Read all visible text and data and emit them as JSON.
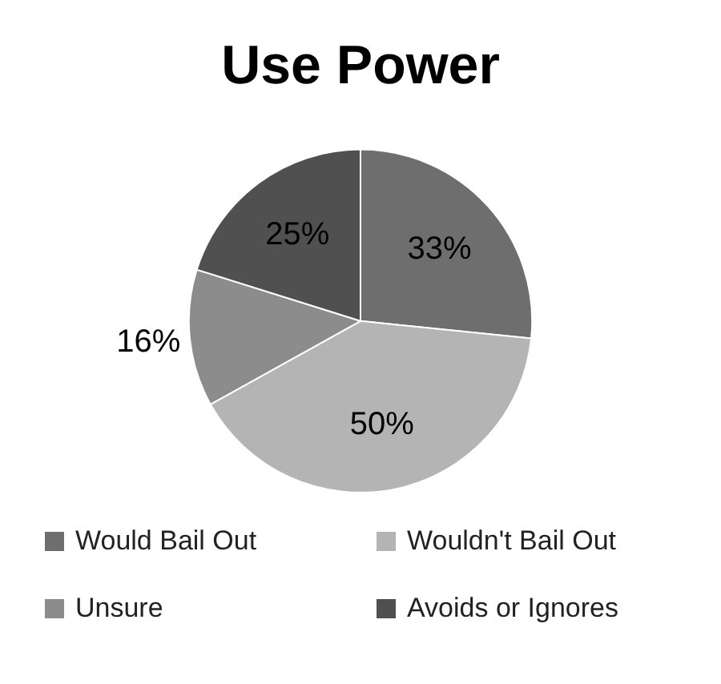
{
  "chart_data": {
    "type": "pie",
    "title": "Use Power",
    "categories": [
      "Would Bail Out",
      "Wouldn't Bail Out",
      "Unsure",
      "Avoids or Ignores"
    ],
    "values": [
      33,
      50,
      16,
      25
    ],
    "colors": [
      "#6e6e6e",
      "#b4b4b4",
      "#8c8c8c",
      "#505050"
    ],
    "value_labels": [
      "33%",
      "50%",
      "16%",
      "25%"
    ],
    "legend": "bottom"
  }
}
